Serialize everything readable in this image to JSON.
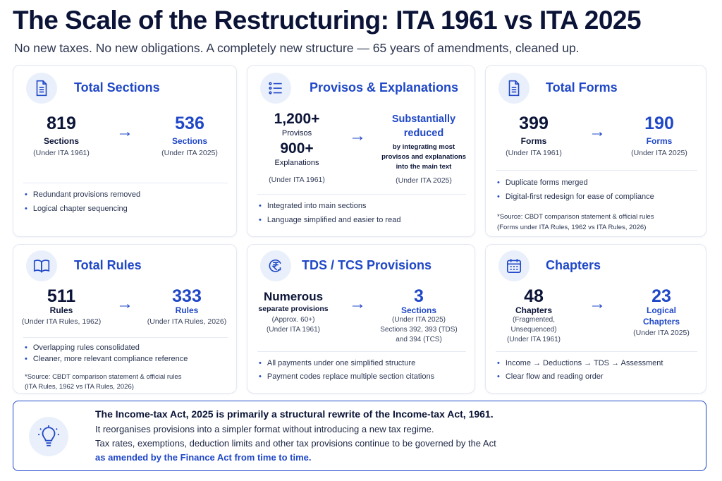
{
  "header": {
    "title": "The Scale of the Restructuring: ITA 1961 vs ITA 2025",
    "subtitle": "No new taxes. No new obligations. A completely new structure — 65 years of amendments, cleaned up."
  },
  "sections": {
    "title": "Total Sections",
    "old_value": "819",
    "old_label": "Sections",
    "old_sub": "(Under ITA 1961)",
    "new_value": "536",
    "new_label": "Sections",
    "new_sub": "(Under ITA 2025)",
    "bullets": [
      "Redundant provisions removed",
      "Logical chapter sequencing"
    ],
    "arrow": "→"
  },
  "provisos": {
    "title": "Provisos & Explanations",
    "old_value1": "1,200+",
    "old_label1": "Provisos",
    "old_value2": "900+",
    "old_label2": "Explanations",
    "old_sub": "(Under ITA 1961)",
    "new_line1": "Substantially",
    "new_line2": "reduced",
    "new_desc1": "by integrating most",
    "new_desc2": "provisos and explanations",
    "new_desc3": "into the main text",
    "new_sub": "(Under ITA 2025)",
    "bullets": [
      "Integrated into main sections",
      "Language simplified and easier to read"
    ],
    "arrow": "→"
  },
  "forms": {
    "title": "Total Forms",
    "old_value": "399",
    "old_label": "Forms",
    "old_sub": "(Under ITA 1961)",
    "new_value": "190",
    "new_label": "Forms",
    "new_sub": "(Under ITA 2025)",
    "bullets": [
      "Duplicate forms merged",
      "Digital-first redesign for ease of compliance"
    ],
    "note1": "*Source: CBDT comparison statement & official rules",
    "note2": "(Forms under ITA Rules, 1962 vs ITA Rules, 2026)",
    "arrow": "→"
  },
  "rules": {
    "title": "Total Rules",
    "old_value": "511",
    "old_label": "Rules",
    "old_sub": "(Under ITA Rules, 1962)",
    "new_value": "333",
    "new_label": "Rules",
    "new_sub": "(Under ITA Rules, 2026)",
    "bullets": [
      "Overlapping rules consolidated",
      "Cleaner, more relevant compliance reference"
    ],
    "note1": "*Source: CBDT comparison statement & official rules",
    "note2": "(ITA Rules, 1962 vs ITA Rules, 2026)",
    "arrow": "→"
  },
  "tds": {
    "title": "TDS / TCS Provisions",
    "old_value": "Numerous",
    "old_label": "separate provisions",
    "old_sub1": "(Approx. 60+)",
    "old_sub2": "(Under ITA 1961)",
    "new_value": "3",
    "new_label": "Sections",
    "new_sub1": "(Under ITA 2025)",
    "new_sub2": "Sections 392, 393 (TDS)",
    "new_sub3": "and 394 (TCS)",
    "bullets": [
      "All payments under one simplified structure",
      "Payment codes replace multiple section citations"
    ],
    "arrow": "→"
  },
  "chapters": {
    "title": "Chapters",
    "old_value": "48",
    "old_label": "Chapters",
    "old_sub1": "(Fragmented,",
    "old_sub2": "Unsequenced)",
    "old_sub3": "(Under ITA 1961)",
    "new_value": "23",
    "new_label1": "Logical",
    "new_label2": "Chapters",
    "new_sub": "(Under ITA 2025)",
    "bullets": [
      "Income → Deductions → TDS → Assessment",
      "Clear flow and reading order"
    ],
    "arrow": "→"
  },
  "summary": {
    "line1": "The Income-tax Act, 2025 is primarily a structural rewrite of the Income-tax Act, 1961.",
    "line2": "It reorganises provisions into a simpler format without introducing a new tax regime.",
    "line3": "Tax rates, exemptions, deduction limits and other tax provisions continue to be governed by the Act",
    "line4": "as amended by the Finance Act from time to time."
  },
  "icons": {
    "sections": "document-icon",
    "provisos": "list-icon",
    "forms": "document-icon",
    "rules": "book-icon",
    "tds": "rupee-icon",
    "chapters": "calendar-icon",
    "summary": "lightbulb-icon"
  },
  "colors": {
    "accent": "#1f47c7",
    "title": "#0b1437",
    "icon_bg": "#eaf0fb"
  }
}
